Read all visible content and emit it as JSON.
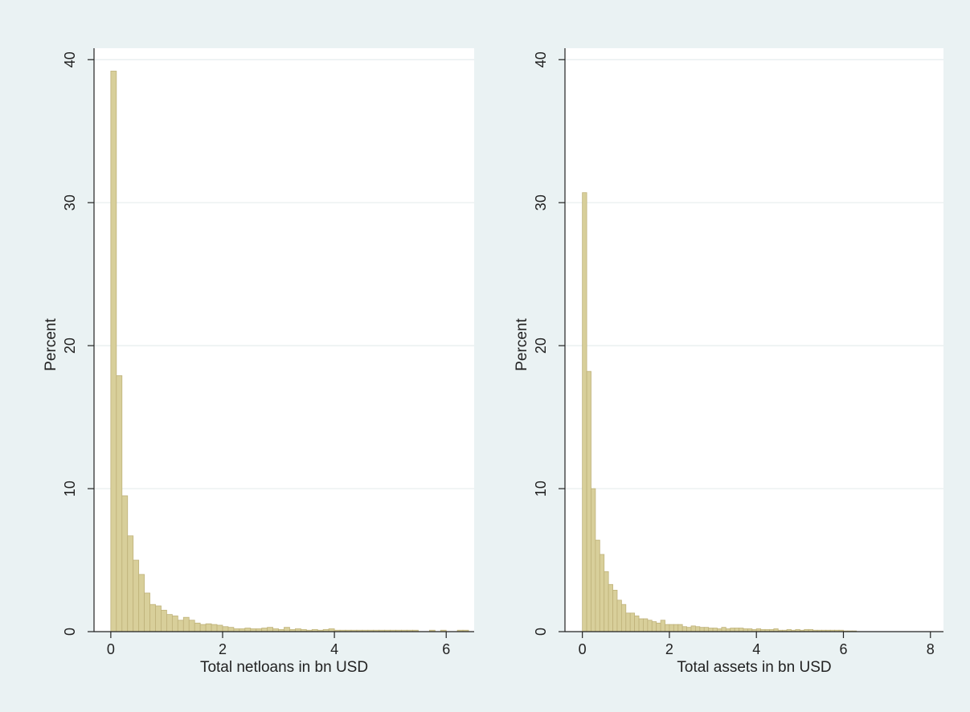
{
  "figure": {
    "background_color": "#eaf2f3",
    "plot_background_color": "#ffffff",
    "bar_fill_color": "#d8cf9a",
    "bar_edge_color": "#bfb27a",
    "gridline_color": "#e6edee",
    "axis_color": "#222222"
  },
  "chart_data": [
    {
      "type": "bar",
      "xlabel": "Total netloans in bn USD",
      "ylabel": "Percent",
      "xlim": [
        -0.3,
        6.5
      ],
      "ylim": [
        0,
        40.8
      ],
      "xticks": [
        0,
        2,
        4,
        6
      ],
      "yticks": [
        0,
        10,
        20,
        30,
        40
      ],
      "grid": true,
      "bin_width": 0.1,
      "bin_start": 0,
      "values": [
        39.2,
        17.9,
        9.5,
        6.7,
        5.0,
        4.0,
        2.7,
        1.9,
        1.8,
        1.5,
        1.2,
        1.1,
        0.8,
        1.0,
        0.8,
        0.6,
        0.5,
        0.55,
        0.5,
        0.45,
        0.35,
        0.3,
        0.2,
        0.2,
        0.25,
        0.2,
        0.2,
        0.25,
        0.3,
        0.2,
        0.15,
        0.3,
        0.15,
        0.2,
        0.15,
        0.1,
        0.15,
        0.1,
        0.15,
        0.2,
        0.1,
        0.1,
        0.1,
        0.1,
        0.1,
        0.1,
        0.1,
        0.1,
        0.1,
        0.1,
        0.1,
        0.1,
        0.1,
        0.1,
        0.1,
        0.0,
        0.0,
        0.1,
        0.0,
        0.1,
        0.0,
        0.0,
        0.1,
        0.1
      ]
    },
    {
      "type": "bar",
      "xlabel": "Total assets in bn USD",
      "ylabel": "Percent",
      "xlim": [
        -0.4,
        8.3
      ],
      "ylim": [
        0,
        40.8
      ],
      "xticks": [
        0,
        2,
        4,
        6,
        8
      ],
      "yticks": [
        0,
        10,
        20,
        30,
        40
      ],
      "grid": true,
      "bin_width": 0.1,
      "bin_start": 0,
      "values": [
        30.7,
        18.2,
        10.0,
        6.4,
        5.4,
        4.2,
        3.3,
        2.9,
        2.2,
        1.9,
        1.3,
        1.3,
        1.1,
        0.9,
        0.9,
        0.8,
        0.7,
        0.6,
        0.8,
        0.5,
        0.5,
        0.5,
        0.5,
        0.35,
        0.3,
        0.4,
        0.35,
        0.3,
        0.3,
        0.25,
        0.25,
        0.2,
        0.3,
        0.2,
        0.25,
        0.25,
        0.25,
        0.2,
        0.2,
        0.15,
        0.2,
        0.15,
        0.15,
        0.15,
        0.2,
        0.1,
        0.1,
        0.15,
        0.1,
        0.15,
        0.1,
        0.15,
        0.15,
        0.1,
        0.1,
        0.1,
        0.1,
        0.1,
        0.1,
        0.1,
        0.05,
        0.05,
        0.05
      ]
    }
  ]
}
